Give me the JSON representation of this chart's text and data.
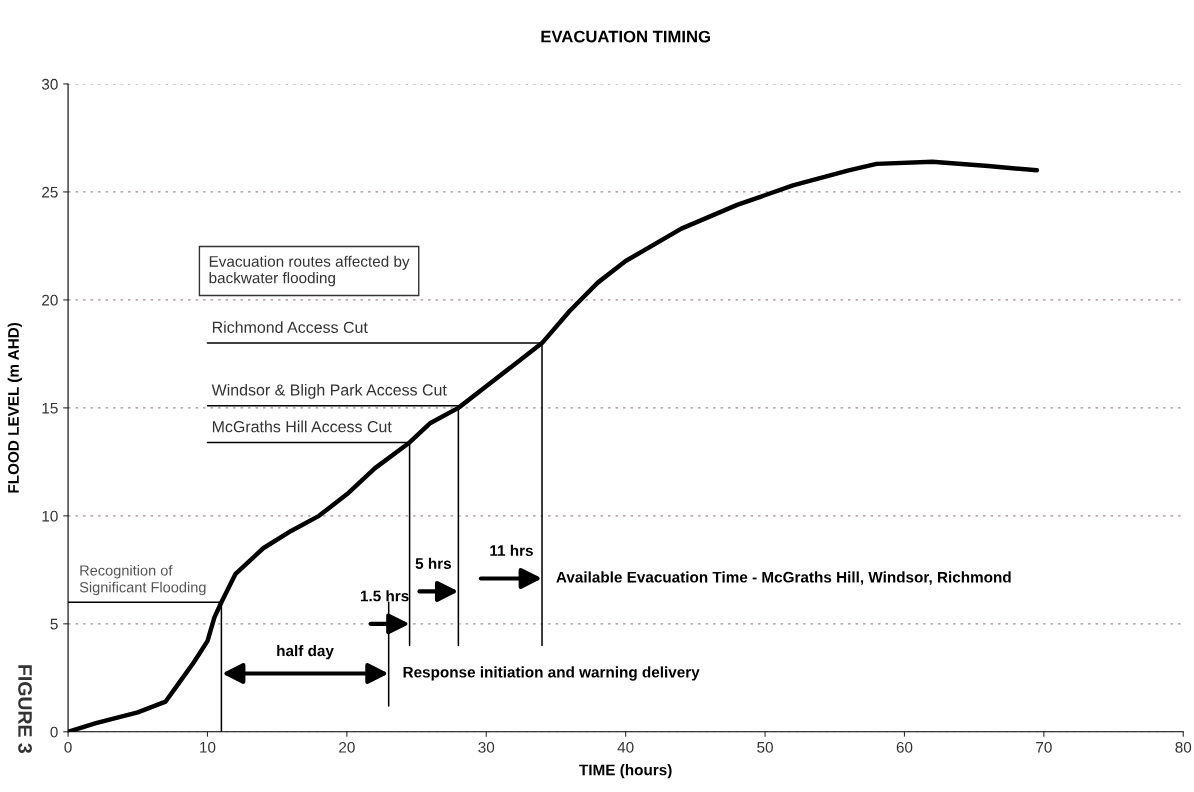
{
  "chart_data": {
    "type": "line",
    "title": "EVACUATION TIMING",
    "xlabel": "TIME (hours)",
    "ylabel": "FLOOD LEVEL (m AHD)",
    "xlim": [
      0,
      80
    ],
    "xticks": [
      0,
      10,
      20,
      30,
      40,
      50,
      60,
      70,
      80
    ],
    "ylim": [
      0,
      30
    ],
    "yticks": [
      0,
      5,
      10,
      15,
      20,
      25,
      30
    ],
    "grid": "y",
    "series": [
      {
        "color": "#000000",
        "x": [
          0,
          2,
          5,
          7,
          8,
          9,
          10,
          10.5,
          11,
          12,
          14,
          16,
          18,
          20,
          22,
          24.5,
          26,
          28,
          30,
          32,
          34,
          36,
          38,
          40,
          44,
          48,
          52,
          56,
          58,
          62,
          66,
          69.5
        ],
        "values": [
          0,
          0.4,
          0.9,
          1.4,
          2.3,
          3.2,
          4.2,
          5.3,
          6,
          7.3,
          8.5,
          9.3,
          10,
          11,
          12.2,
          13.4,
          14.3,
          15,
          16,
          17,
          18,
          19.5,
          20.8,
          21.8,
          23.3,
          24.4,
          25.3,
          26,
          26.3,
          26.4,
          26.2,
          26
        ]
      },
      {
        "color": "#000000",
        "x": [
          0,
          11,
          11
        ],
        "values": [
          6,
          6,
          0
        ]
      },
      {
        "color": "#000000",
        "x": [
          10,
          24.5,
          24.5
        ],
        "values": [
          13.4,
          13.4,
          4
        ]
      },
      {
        "color": "#000000",
        "x": [
          10,
          28,
          28
        ],
        "values": [
          15.1,
          15.1,
          4
        ]
      },
      {
        "color": "#000000",
        "x": [
          10,
          34,
          34
        ],
        "values": [
          18,
          18,
          4
        ]
      },
      {
        "color": "#000000",
        "x": [
          23,
          23
        ],
        "values": [
          1.2,
          6
        ]
      }
    ],
    "annotations": [
      "Evacuation routes affected by\nbackwater flooding",
      {
        "text": "Richmond Access Cut",
        "x": 10,
        "y": 18
      },
      {
        "text": "Windsor & Bligh Park Access Cut",
        "x": 10,
        "y": 15.1
      },
      {
        "text": "McGraths Hill Access Cut",
        "x": 10,
        "y": 13.4
      },
      {
        "text": "Recognition of\nSignificant Flooding",
        "x": 0,
        "y": 6
      },
      "half day",
      {
        "text": "1.5 hrs",
        "x": 24.5,
        "y": 5
      },
      {
        "text": "5 hrs",
        "x": 28,
        "y": 6.5
      },
      {
        "text": "11 hrs",
        "x": 34,
        "y": 7.1
      },
      {
        "text": "Response initiation and warning delivery",
        "x": 23,
        "y": 2.7
      },
      {
        "text": "Available Evacuation Time - McGraths Hill, Windsor, Richmond",
        "x": 34,
        "y": 7.1
      },
      "FIGURE 3"
    ]
  }
}
